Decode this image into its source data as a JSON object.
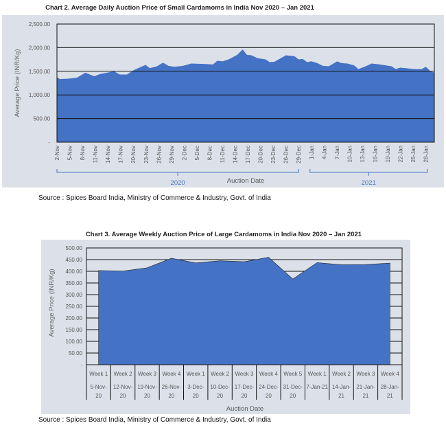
{
  "chart_data": [
    {
      "type": "area",
      "title": "Chart 2. Average Daily Auction Price of Small Cardamoms in India Nov 2020 – Jan 2021",
      "xlabel": "Auction Date",
      "ylabel": "Average Price (INR/Kg)",
      "ylim": [
        0,
        2500
      ],
      "yticks": [
        "-",
        "500.00",
        "1,000.00",
        "1,500.00",
        "2,000.00",
        "2,500.00"
      ],
      "xtick_labels": [
        "2-Nov",
        "5-Nov",
        "8-Nov",
        "11-Nov",
        "14-Nov",
        "17-Nov",
        "20-Nov",
        "23-Nov",
        "26-Nov",
        "29-Nov",
        "2-Dec",
        "5-Dec",
        "8-Dec",
        "11-Dec",
        "14-Dec",
        "17-Dec",
        "20-Dec",
        "23-Dec",
        "26-Dec",
        "29-Dec",
        "1-Jan",
        "4-Jan",
        "7-Jan",
        "10-Jan",
        "13-Jan",
        "16-Jan",
        "19-Jan",
        "22-Jan",
        "25-Jan",
        "28-Jan"
      ],
      "groups": [
        {
          "label": "2020"
        },
        {
          "label": "2021"
        }
      ],
      "day_offset": [
        0,
        0.7,
        2.7,
        4.7,
        6.7,
        8.8,
        10.1,
        13.5,
        14.8,
        16.5,
        18.2,
        20.9,
        21.9,
        23.6,
        25,
        26.3,
        27.7,
        29.7,
        31.7,
        35.1,
        36.8,
        37.8,
        39.1,
        40.5,
        42.5,
        43.8,
        44.8,
        45.9,
        47.2,
        49.2,
        50.2,
        51.3,
        54,
        56,
        57,
        58,
        59,
        60,
        61.4,
        62.7,
        64.1,
        66.1,
        67.1,
        68.5,
        70.1,
        71.1,
        72.8,
        74.2,
        76.2,
        78.9,
        79.9,
        80.9,
        82.3,
        84.3,
        86,
        87,
        88,
        89
      ],
      "values": [
        1373,
        1335,
        1344,
        1364,
        1470,
        1393,
        1441,
        1499,
        1431,
        1431,
        1528,
        1635,
        1567,
        1606,
        1683,
        1615,
        1596,
        1615,
        1664,
        1654,
        1644,
        1722,
        1712,
        1751,
        1847,
        1963,
        1847,
        1838,
        1780,
        1751,
        1693,
        1702,
        1838,
        1818,
        1751,
        1761,
        1693,
        1712,
        1673,
        1615,
        1606,
        1712,
        1673,
        1664,
        1625,
        1547,
        1606,
        1664,
        1644,
        1606,
        1547,
        1577,
        1567,
        1547,
        1547,
        1596,
        1509,
        1470
      ],
      "grid": true,
      "color": "#4472c4",
      "source": "Source : Spices Board India, Ministry of Commerce & Industry, Govt. of India"
    },
    {
      "type": "area",
      "title": "Chart 3. Average Weekly Auction Price of Large Cardamoms in India Nov 2020 – Jan 2021",
      "xlabel": "Auction Date",
      "ylabel": "Average Price (INR/Kg)",
      "ylim": [
        0,
        500
      ],
      "yticks": [
        "-",
        "50.00",
        "100.00",
        "150.00",
        "200.00",
        "250.00",
        "300.00",
        "350.00",
        "400.00",
        "450.00",
        "500.00"
      ],
      "categories": [
        {
          "week": "Week 1",
          "date": [
            "5-Nov-",
            "20"
          ]
        },
        {
          "week": "Week 2",
          "date": [
            "12-Nov-",
            "20"
          ]
        },
        {
          "week": "Week 3",
          "date": [
            "19-Nov-",
            "20"
          ]
        },
        {
          "week": "Week 4",
          "date": [
            "26-Nov-",
            "20"
          ]
        },
        {
          "week": "Week 1",
          "date": [
            "3-Dec-",
            "20"
          ]
        },
        {
          "week": "Week 2",
          "date": [
            "10-Dec-",
            "20"
          ]
        },
        {
          "week": "Week 3",
          "date": [
            "17-Dec-",
            "20"
          ]
        },
        {
          "week": "Week 4",
          "date": [
            "24-Dec-",
            "20"
          ]
        },
        {
          "week": "Week 5",
          "date": [
            "31-Dec-",
            "20"
          ]
        },
        {
          "week": "Week 1",
          "date": [
            "7-Jan-21",
            ""
          ]
        },
        {
          "week": "Week 2",
          "date": [
            "14-Jan-",
            "21"
          ]
        },
        {
          "week": "Week 3",
          "date": [
            "21-Jan-",
            "21"
          ]
        },
        {
          "week": "Week 4",
          "date": [
            "28-Jan-",
            "21"
          ]
        }
      ],
      "values": [
        403,
        401,
        415,
        456,
        436,
        445,
        441,
        460,
        367,
        437,
        428,
        429,
        435
      ],
      "grid": true,
      "color": "#4472c4",
      "source": "Source : Spices Board India, Ministry of Commerce & Industry, Govt. of India"
    }
  ]
}
